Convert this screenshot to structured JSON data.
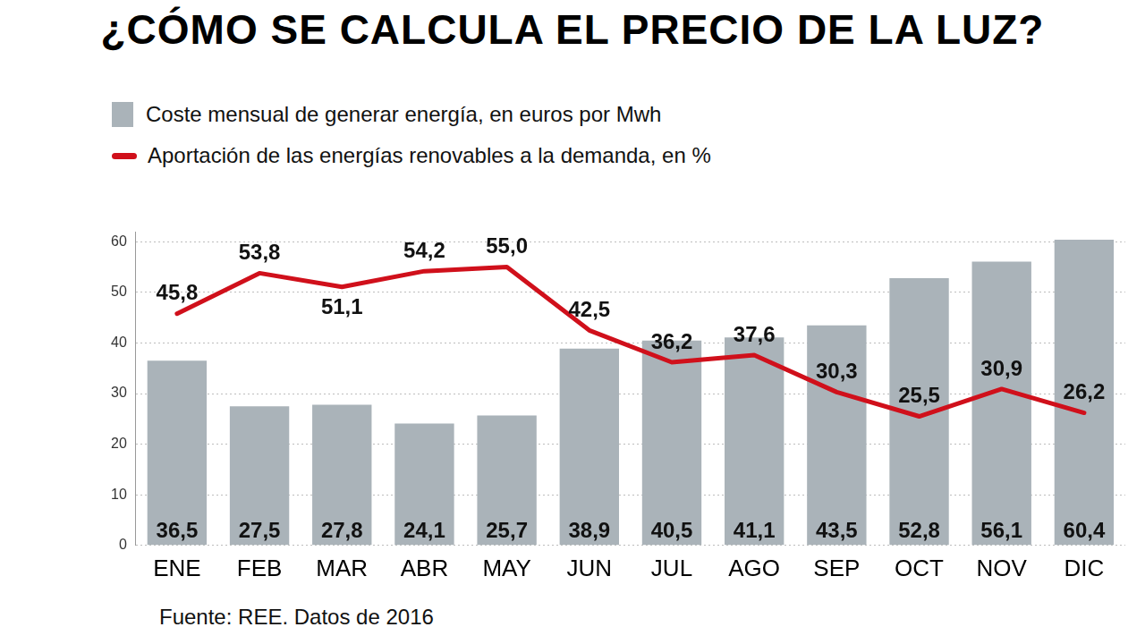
{
  "chart_data": {
    "type": "bar",
    "title": "¿CÓMO SE CALCULA EL PRECIO DE LA LUZ?",
    "annotations": [
      "Fuente: REE. Datos de 2016"
    ],
    "categories": [
      "ENE",
      "FEB",
      "MAR",
      "ABR",
      "MAY",
      "JUN",
      "JUL",
      "AGO",
      "SEP",
      "OCT",
      "NOV",
      "DIC"
    ],
    "series": [
      {
        "name": "Coste mensual de generar energía, en euros por Mwh",
        "type": "bar",
        "color": "#aab3b9",
        "values": [
          36.5,
          27.5,
          27.8,
          24.1,
          25.7,
          38.9,
          40.5,
          41.1,
          43.5,
          52.8,
          56.1,
          60.4
        ],
        "value_labels": [
          "36,5",
          "27,5",
          "27,8",
          "24,1",
          "25,7",
          "38,9",
          "40,5",
          "41,1",
          "43,5",
          "52,8",
          "56,1",
          "60,4"
        ]
      },
      {
        "name": "Aportación de las energías renovables a la demanda, en %",
        "type": "line",
        "color": "#d0101b",
        "values": [
          45.8,
          53.8,
          51.1,
          54.2,
          55.0,
          42.5,
          36.2,
          37.6,
          30.3,
          25.5,
          30.9,
          26.2
        ],
        "value_labels": [
          "45,8",
          "53,8",
          "51,1",
          "54,2",
          "55,0",
          "42,5",
          "36,2",
          "37,6",
          "30,3",
          "25,5",
          "30,9",
          "26,2"
        ]
      }
    ],
    "ylim": [
      0,
      62
    ],
    "yticks": [
      0,
      10,
      20,
      30,
      40,
      50,
      60
    ],
    "grid": true,
    "data_labels": true,
    "legend": "top-left"
  }
}
